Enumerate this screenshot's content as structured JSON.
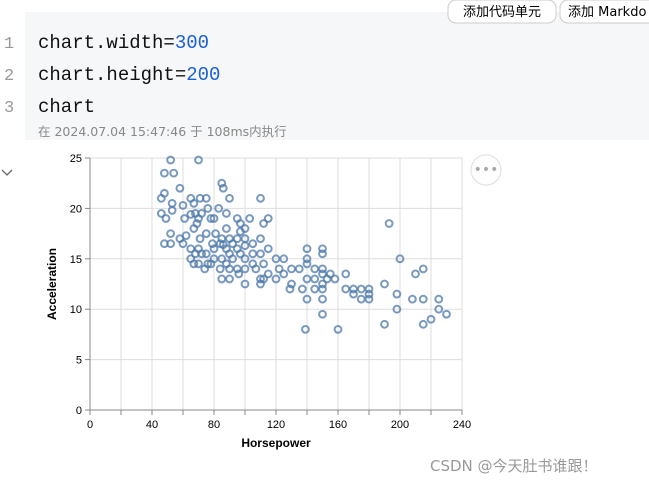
{
  "toolbar": {
    "buttons": [
      "添加代码单元",
      "添加 Markdo"
    ]
  },
  "cell": {
    "line_numbers": [
      "1",
      "2",
      "3"
    ],
    "code": [
      {
        "text": "chart.width=",
        "number": "300"
      },
      {
        "text": "chart.height=",
        "number": "200"
      },
      {
        "text": "chart"
      }
    ],
    "status": "在 2024.07.04 15:47:46 于 108ms内执行"
  },
  "watermark": "CSDN @今天肚书谁跟！",
  "chart_data": {
    "type": "scatter",
    "x_label": "Horsepower",
    "y_label": "Acceleration",
    "color": "#4c78a8",
    "grid": true,
    "xlim": [
      0,
      240
    ],
    "xticks": [
      0,
      40,
      80,
      120,
      160,
      200,
      240
    ],
    "x_minor_ticks": [
      20,
      60,
      100,
      140,
      180,
      220
    ],
    "ylim": [
      0,
      25
    ],
    "yticks": [
      0,
      5,
      10,
      15,
      20,
      25
    ],
    "x": [
      46,
      46,
      48,
      48,
      49,
      52,
      53,
      54,
      58,
      60,
      61,
      65,
      65,
      67,
      67,
      68,
      69,
      70,
      70,
      71,
      72,
      75,
      76,
      78,
      79,
      80,
      83,
      85,
      86,
      88,
      90,
      95,
      97,
      100,
      103,
      110,
      112,
      115,
      48,
      52,
      52,
      58,
      60,
      62,
      65,
      65,
      67,
      68,
      70,
      70,
      71,
      72,
      74,
      75,
      75,
      76,
      78,
      80,
      80,
      81,
      84,
      84,
      85,
      85,
      86,
      88,
      88,
      88,
      90,
      90,
      90,
      90,
      92,
      92,
      95,
      95,
      95,
      96,
      97,
      97,
      100,
      100,
      100,
      100,
      105,
      105,
      105,
      107,
      110,
      110,
      110,
      112,
      115,
      115,
      120,
      120,
      122,
      125,
      125,
      129,
      130,
      130,
      135,
      137,
      140,
      140,
      140,
      140,
      145,
      145,
      145,
      150,
      150,
      150,
      150,
      150,
      150,
      150,
      153,
      155,
      158,
      160,
      165,
      165,
      170,
      170,
      175,
      175,
      180,
      180,
      180,
      190,
      190,
      193,
      198,
      198,
      200,
      208,
      210,
      215,
      215,
      220,
      225,
      225,
      230,
      215,
      53,
      139,
      110,
      112,
      85,
      100,
      140,
      150
    ],
    "values": [
      19.5,
      21,
      23.5,
      21.5,
      19,
      24.8,
      20.5,
      23.5,
      22,
      20.3,
      19,
      21,
      19.4,
      20.5,
      18,
      19.5,
      18.5,
      24.8,
      19,
      21,
      19.5,
      21,
      20,
      19,
      16.5,
      19,
      20,
      22.5,
      22,
      19.5,
      21,
      19,
      18.5,
      18,
      19,
      21,
      18.5,
      19,
      16.5,
      17.5,
      16.5,
      17,
      16.5,
      17.3,
      16,
      15,
      14.5,
      15.5,
      14.5,
      16,
      17,
      15.5,
      14,
      15.5,
      17.5,
      14.5,
      14.5,
      16,
      15,
      17.5,
      16.5,
      14,
      15,
      17,
      16.4,
      14.5,
      16,
      18,
      15.5,
      17,
      13,
      14,
      15,
      16.5,
      14,
      16,
      17,
      13.5,
      15.5,
      17.7,
      15,
      17,
      14,
      16.3,
      14.5,
      15.5,
      16.5,
      14,
      13,
      15.5,
      17,
      14.5,
      13.5,
      16,
      15,
      13,
      14,
      15,
      13.5,
      12,
      12.5,
      14,
      14,
      12,
      13,
      11,
      14.5,
      16,
      13,
      12,
      14,
      12,
      11,
      13.5,
      9.5,
      14,
      15.5,
      12.5,
      13,
      13.5,
      13,
      8,
      12,
      13.5,
      12,
      11.5,
      12,
      11,
      12,
      11.5,
      11,
      12.5,
      8.5,
      18.5,
      11.5,
      10,
      15,
      11,
      13.5,
      14,
      11,
      9,
      10,
      11,
      9.5,
      8.5,
      19.8,
      8,
      12.5,
      13,
      13,
      12.5,
      15,
      16
    ]
  }
}
